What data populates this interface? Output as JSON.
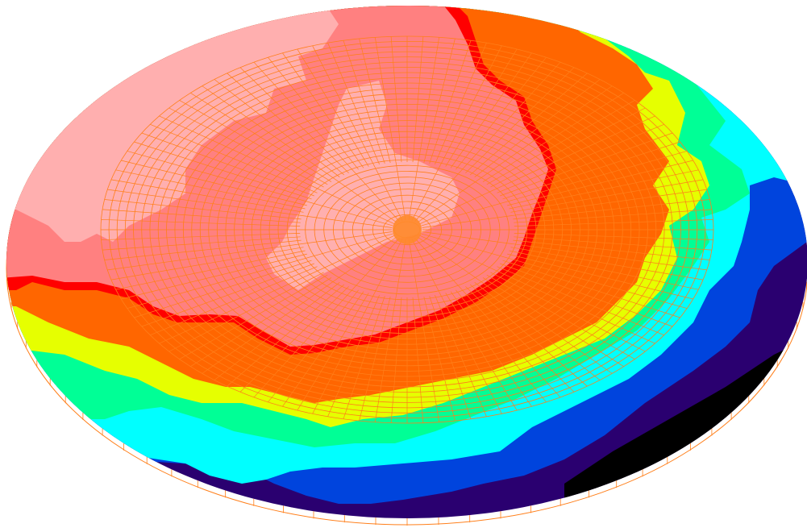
{
  "view": {
    "background": "#ffffff",
    "mesh_color": "#ff7f1a",
    "contour_edge_color": "#ff0000"
  },
  "contour_legend_colors": [
    "#ffafaf",
    "#ff8080",
    "#ff0000",
    "#ff6600",
    "#ffaa00",
    "#e6ff00",
    "#00ff96",
    "#00ffff",
    "#0044dd",
    "#0022aa",
    "#2a0070",
    "#000000"
  ],
  "mesh": {
    "radial_rings": 34,
    "angular_segments": 120,
    "outer_panels": 80
  }
}
